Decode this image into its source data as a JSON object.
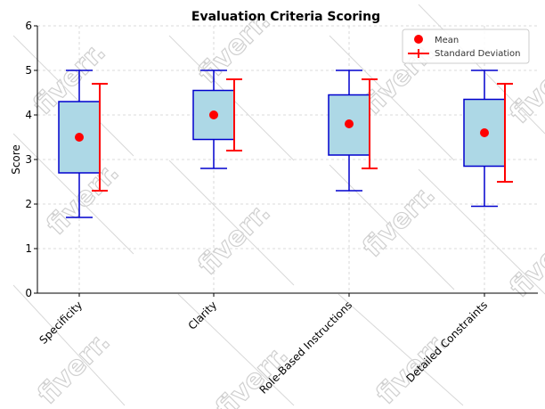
{
  "chart_data": {
    "type": "box",
    "title": "Evaluation Criteria Scoring",
    "xlabel": "",
    "ylabel": "Score",
    "ylim": [
      0,
      6
    ],
    "yticks": [
      0,
      1,
      2,
      3,
      4,
      5,
      6
    ],
    "grid": true,
    "legend_position": "top-right",
    "legend": [
      "Mean",
      "Standard Deviation"
    ],
    "categories": [
      "Specificity",
      "Clarity",
      "Role-Based Instructions",
      "Detailed Constraints"
    ],
    "boxes": [
      {
        "min": 1.7,
        "q1": 2.7,
        "q3": 4.3,
        "max": 5.0
      },
      {
        "min": 2.8,
        "q1": 3.45,
        "q3": 4.55,
        "max": 5.0
      },
      {
        "min": 2.3,
        "q1": 3.1,
        "q3": 4.45,
        "max": 5.0
      },
      {
        "min": 1.95,
        "q1": 2.85,
        "q3": 4.35,
        "max": 5.0
      }
    ],
    "mean": [
      3.5,
      4.0,
      3.8,
      3.6
    ],
    "std_range": [
      [
        2.3,
        4.7
      ],
      [
        3.2,
        4.8
      ],
      [
        2.8,
        4.8
      ],
      [
        2.5,
        4.7
      ]
    ],
    "colors": {
      "box_fill": "#add8e6",
      "box_edge": "#0000cd",
      "mean": "#ff0000",
      "std": "#ff0000",
      "grid": "#d0d0d0"
    }
  },
  "watermark": {
    "text": "fiverr."
  }
}
